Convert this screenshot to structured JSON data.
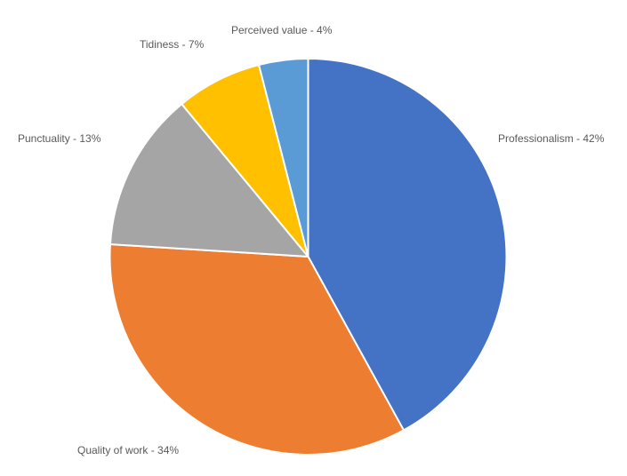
{
  "chart_data": {
    "type": "pie",
    "title": "",
    "slices": [
      {
        "label": "Professionalism",
        "value": 42,
        "display": "Professionalism - 42%",
        "color": "#4472C4"
      },
      {
        "label": "Quality of work",
        "value": 34,
        "display": "Quality of work - 34%",
        "color": "#ED7D31"
      },
      {
        "label": "Punctuality",
        "value": 13,
        "display": "Punctuality - 13%",
        "color": "#A5A5A5"
      },
      {
        "label": "Tidiness",
        "value": 7,
        "display": "Tidiness - 7%",
        "color": "#FFC000"
      },
      {
        "label": "Perceived value",
        "value": 4,
        "display": "Perceived value - 4%",
        "color": "#5B9BD5"
      }
    ],
    "start_angle": "12 o'clock",
    "direction": "clockwise",
    "legend": "none",
    "label_color": "#595959"
  }
}
